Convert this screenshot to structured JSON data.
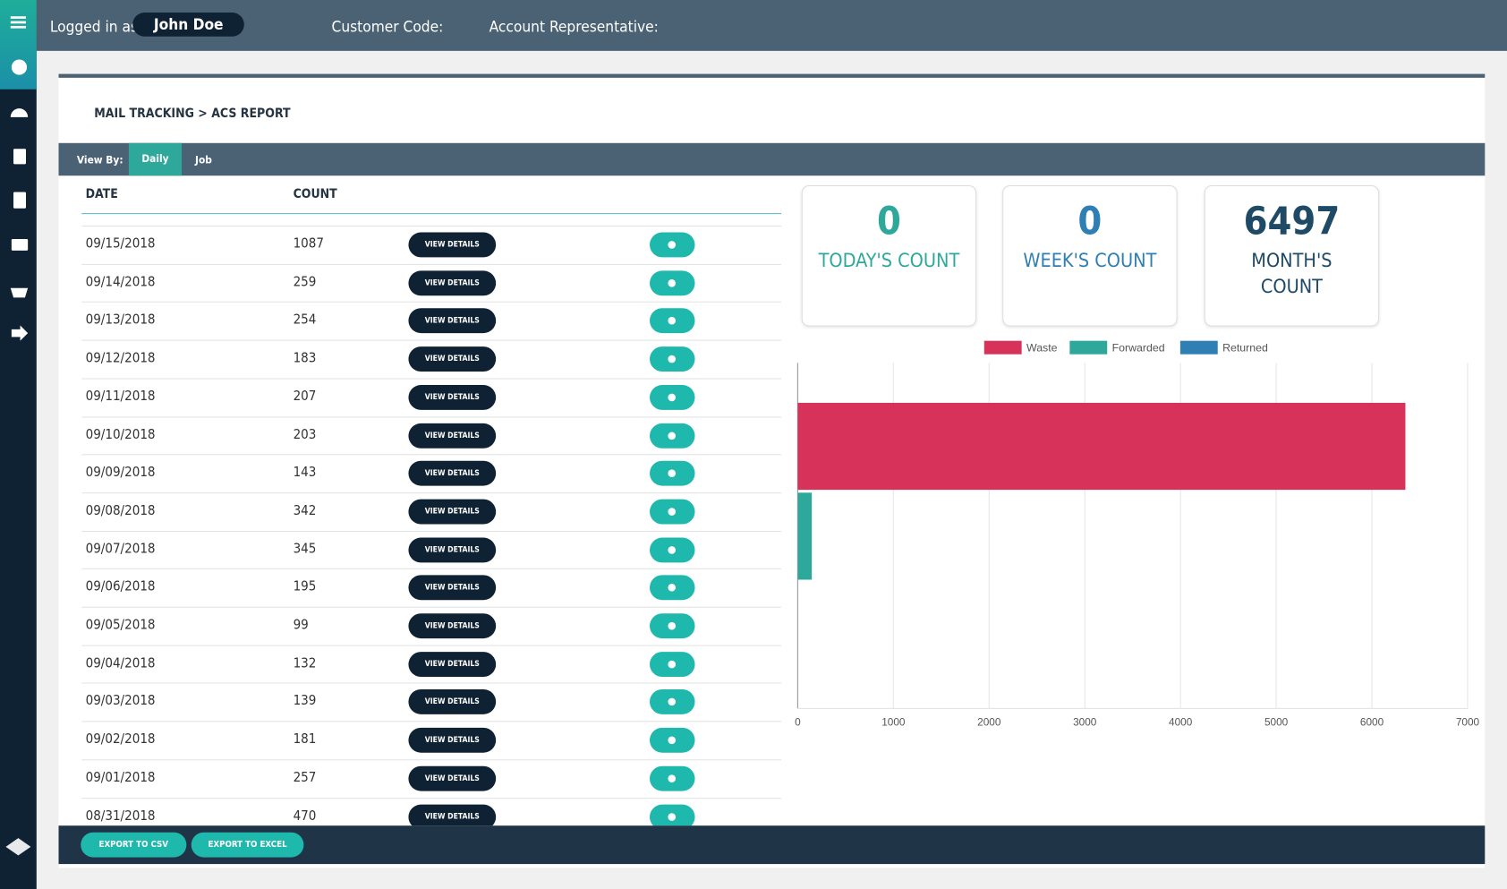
{
  "header": {
    "logged_in_label": "Logged in as:",
    "user": "John Doe",
    "customer_code_label": "Customer Code:",
    "account_rep_label": "Account Representative:"
  },
  "breadcrumb": "MAIL TRACKING > ACS REPORT",
  "view_by": {
    "label": "View By:",
    "tabs": [
      "Daily",
      "Job"
    ],
    "active": "Daily"
  },
  "table": {
    "columns": [
      "DATE",
      "COUNT"
    ],
    "button_label": "VIEW DETAILS",
    "rows": [
      [
        "09/15/2018",
        "1087"
      ],
      [
        "09/14/2018",
        "259"
      ],
      [
        "09/13/2018",
        "254"
      ],
      [
        "09/12/2018",
        "183"
      ],
      [
        "09/11/2018",
        "207"
      ],
      [
        "09/10/2018",
        "203"
      ],
      [
        "09/09/2018",
        "143"
      ],
      [
        "09/08/2018",
        "342"
      ],
      [
        "09/07/2018",
        "345"
      ],
      [
        "09/06/2018",
        "195"
      ],
      [
        "09/05/2018",
        "99"
      ],
      [
        "09/04/2018",
        "132"
      ],
      [
        "09/03/2018",
        "139"
      ],
      [
        "09/02/2018",
        "181"
      ],
      [
        "09/01/2018",
        "257"
      ],
      [
        "08/31/2018",
        "470"
      ]
    ]
  },
  "stats": [
    {
      "value": "0",
      "label": "TODAY'S COUNT"
    },
    {
      "value": "0",
      "label": "WEEK'S COUNT"
    },
    {
      "value": "6497",
      "label": "MONTH'S COUNT"
    }
  ],
  "footer": {
    "buttons": [
      "EXPORT TO CSV",
      "EXPORT TO EXCEL"
    ]
  },
  "chart_data": {
    "type": "hbar",
    "categories": [
      null
    ],
    "series": [
      {
        "name": "Waste",
        "color": "#d6325a",
        "values": [
          6350
        ]
      },
      {
        "name": "Forwarded",
        "color": "#2fa89c",
        "values": [
          147
        ]
      },
      {
        "name": "Returned",
        "color": "#2f7fb4",
        "values": [
          0
        ]
      }
    ],
    "xlim": [
      0,
      7000
    ],
    "xticks": [
      0,
      1000,
      2000,
      3000,
      4000,
      5000,
      6000,
      7000
    ],
    "grid": true,
    "legend": "top"
  }
}
